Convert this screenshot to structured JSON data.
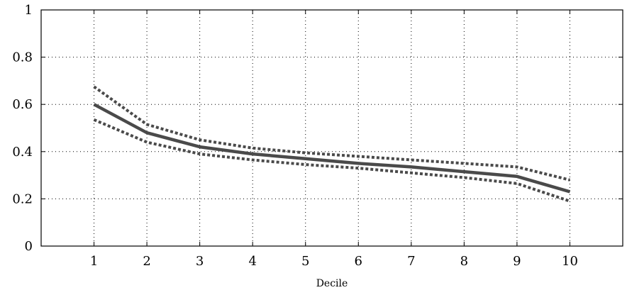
{
  "chart_data": {
    "type": "line",
    "title": "",
    "xlabel": "Decile",
    "ylabel": "",
    "x": [
      1,
      2,
      3,
      4,
      5,
      6,
      7,
      8,
      9,
      10
    ],
    "xlim": [
      0,
      11
    ],
    "ylim": [
      0,
      1
    ],
    "xticks": [
      1,
      2,
      3,
      4,
      5,
      6,
      7,
      8,
      9,
      10
    ],
    "yticks": [
      0,
      0.2,
      0.4,
      0.6,
      0.8,
      1
    ],
    "xtick_labels": [
      "1",
      "2",
      "3",
      "4",
      "5",
      "6",
      "7",
      "8",
      "9",
      "10"
    ],
    "ytick_labels": [
      "0",
      "0.2",
      "0.4",
      "0.6",
      "0.8",
      "1"
    ],
    "grid": true,
    "legend": "none",
    "series": [
      {
        "role": "estimate",
        "style": "solid",
        "color": "#4a4a4a",
        "values": [
          0.6,
          0.48,
          0.42,
          0.39,
          0.37,
          0.35,
          0.335,
          0.315,
          0.295,
          0.23
        ]
      },
      {
        "role": "upper-bound",
        "style": "dotted",
        "color": "#4a4a4a",
        "values": [
          0.675,
          0.515,
          0.45,
          0.415,
          0.395,
          0.38,
          0.365,
          0.35,
          0.335,
          0.28
        ]
      },
      {
        "role": "lower-bound",
        "style": "dotted",
        "color": "#4a4a4a",
        "values": [
          0.535,
          0.44,
          0.39,
          0.365,
          0.345,
          0.33,
          0.31,
          0.29,
          0.265,
          0.19
        ]
      }
    ]
  }
}
